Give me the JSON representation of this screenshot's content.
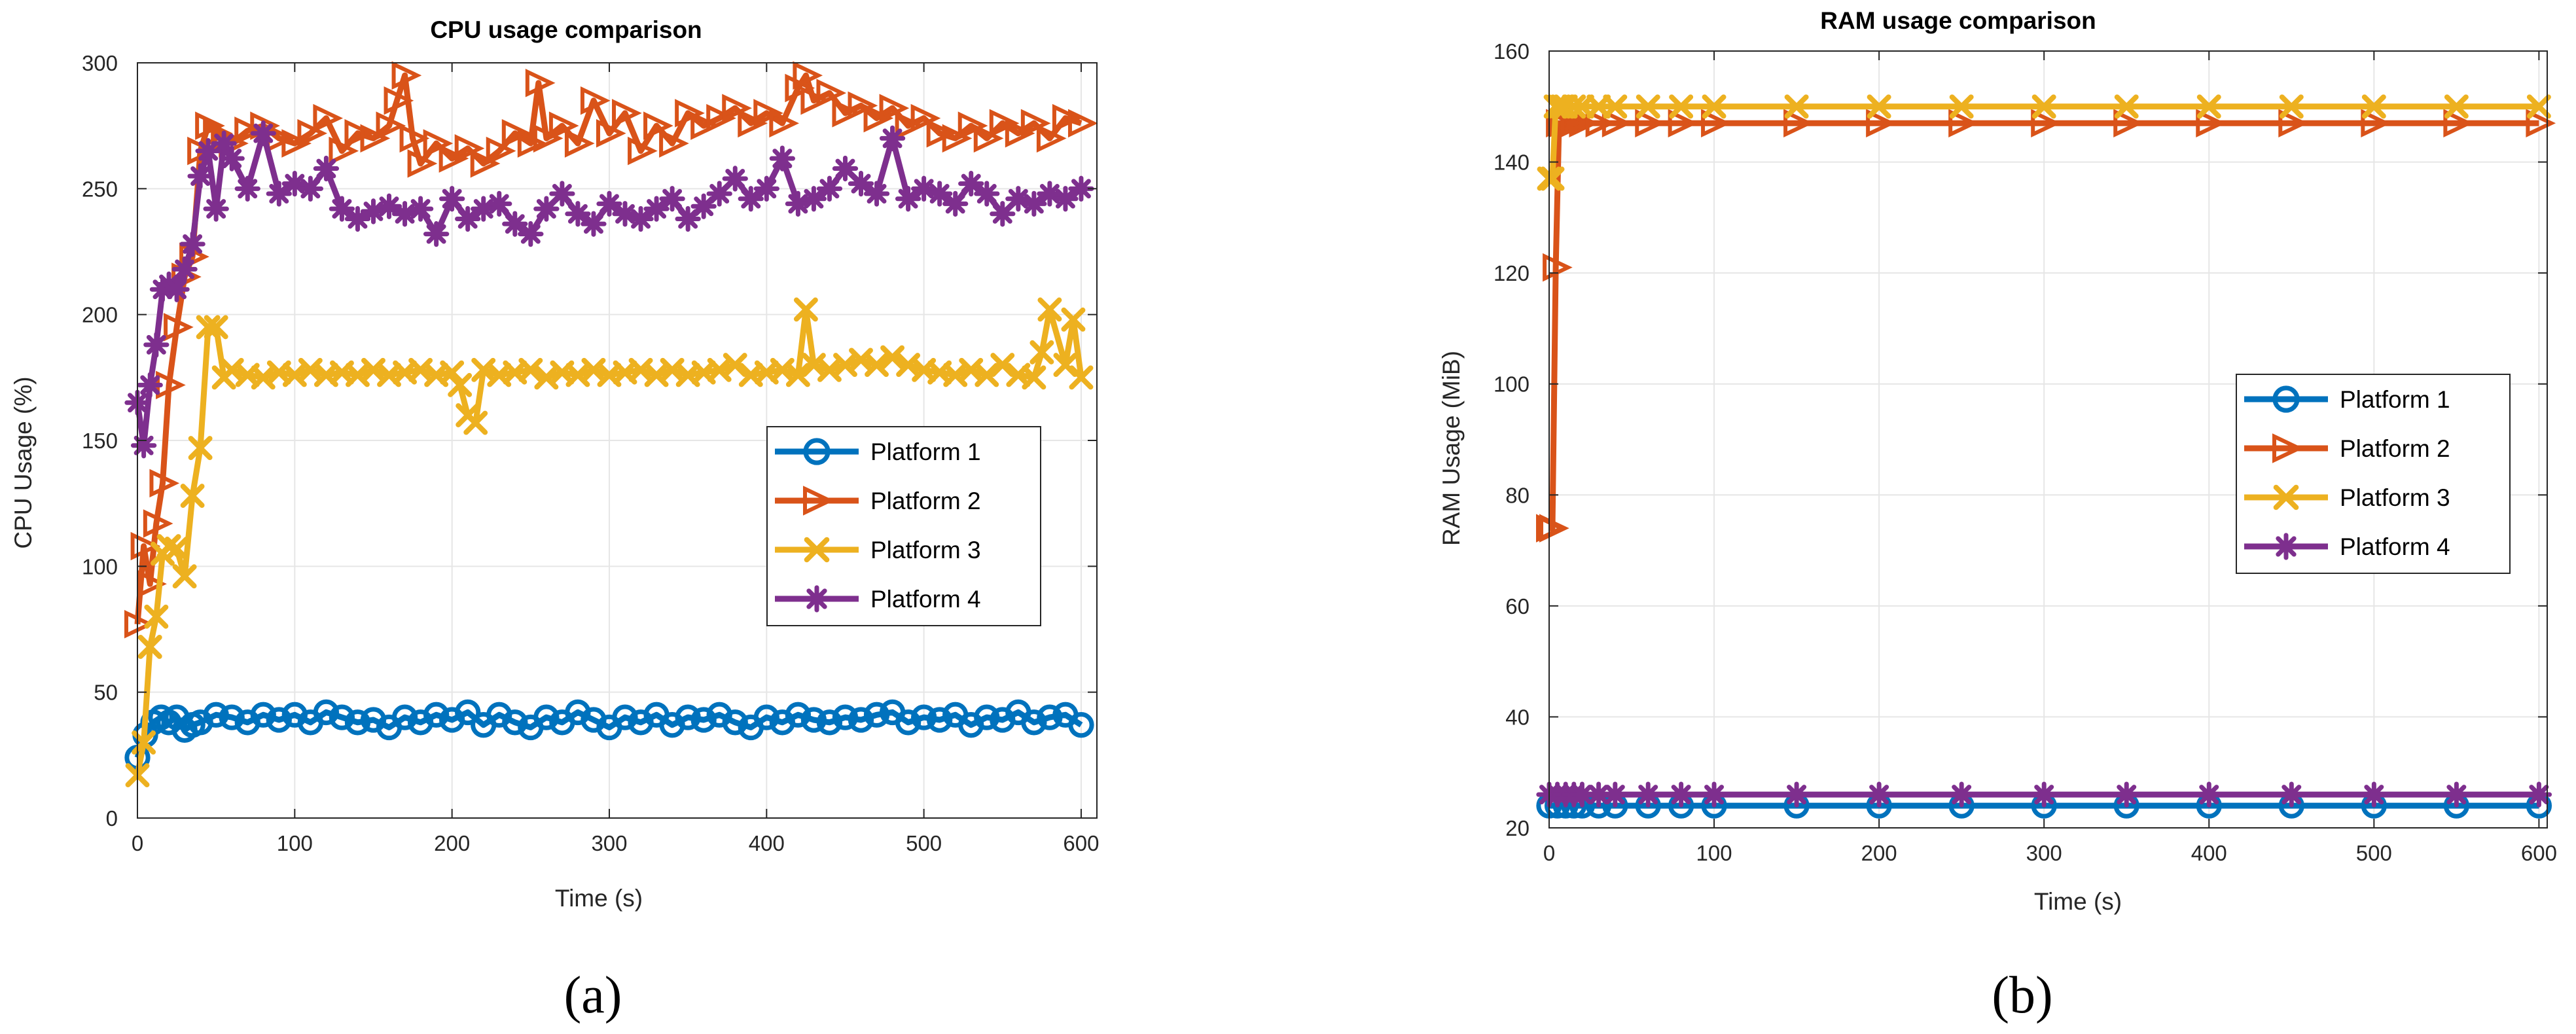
{
  "colors": {
    "platform1": "#0072BD",
    "platform2": "#D95319",
    "platform3": "#EDB120",
    "platform4": "#7E2F8E",
    "grid": "#e6e6e6",
    "axis": "#262626"
  },
  "chart_data": [
    {
      "type": "line",
      "panel": "(a)",
      "title": "CPU usage comparison",
      "xlabel": "Time (s)",
      "ylabel": "CPU Usage (%)",
      "xlim": [
        0,
        610
      ],
      "ylim": [
        0,
        300
      ],
      "xticks": [
        0,
        100,
        200,
        300,
        400,
        500,
        600
      ],
      "yticks": [
        0,
        50,
        100,
        150,
        200,
        250,
        300
      ],
      "grid": true,
      "legend_position": "right-middle",
      "series": [
        {
          "name": "Platform 1",
          "marker": "circle",
          "x": [
            0,
            5,
            10,
            15,
            20,
            25,
            30,
            35,
            40,
            50,
            60,
            70,
            80,
            90,
            100,
            110,
            120,
            130,
            140,
            150,
            160,
            170,
            180,
            190,
            200,
            210,
            220,
            230,
            240,
            250,
            260,
            270,
            280,
            290,
            300,
            310,
            320,
            330,
            340,
            350,
            360,
            370,
            380,
            390,
            400,
            410,
            420,
            430,
            440,
            450,
            460,
            470,
            480,
            490,
            500,
            510,
            520,
            530,
            540,
            550,
            560,
            570,
            580,
            590,
            600
          ],
          "y": [
            24,
            33,
            38,
            40,
            38,
            40,
            35,
            37,
            38,
            41,
            40,
            38,
            41,
            39,
            41,
            38,
            42,
            40,
            38,
            39,
            36,
            40,
            38,
            41,
            39,
            42,
            37,
            41,
            38,
            36,
            40,
            38,
            42,
            39,
            36,
            40,
            38,
            41,
            37,
            40,
            39,
            41,
            38,
            36,
            40,
            38,
            41,
            39,
            38,
            40,
            39,
            41,
            42,
            38,
            40,
            39,
            41,
            37,
            40,
            39,
            42,
            38,
            40,
            41,
            37
          ]
        },
        {
          "name": "Platform 2",
          "marker": "triangle-right",
          "x": [
            0,
            4,
            8,
            12,
            16,
            20,
            25,
            30,
            35,
            40,
            45,
            50,
            55,
            60,
            70,
            80,
            90,
            100,
            110,
            120,
            130,
            140,
            150,
            160,
            165,
            170,
            175,
            180,
            190,
            200,
            210,
            220,
            230,
            240,
            250,
            255,
            260,
            270,
            280,
            290,
            300,
            310,
            320,
            330,
            340,
            350,
            360,
            370,
            380,
            390,
            400,
            410,
            420,
            425,
            430,
            440,
            450,
            460,
            470,
            480,
            490,
            500,
            510,
            520,
            530,
            540,
            550,
            560,
            570,
            580,
            590,
            600
          ],
          "y": [
            77,
            108,
            93,
            117,
            133,
            172,
            195,
            215,
            223,
            265,
            275,
            272,
            270,
            268,
            273,
            275,
            270,
            268,
            272,
            278,
            265,
            272,
            270,
            275,
            285,
            295,
            270,
            260,
            268,
            262,
            266,
            260,
            265,
            272,
            268,
            292,
            270,
            275,
            268,
            285,
            272,
            280,
            265,
            275,
            268,
            280,
            275,
            278,
            282,
            276,
            280,
            276,
            290,
            295,
            285,
            288,
            280,
            283,
            278,
            282,
            275,
            278,
            272,
            270,
            275,
            270,
            276,
            272,
            276,
            270,
            278,
            276
          ]
        },
        {
          "name": "Platform 3",
          "marker": "x",
          "x": [
            0,
            4,
            8,
            12,
            16,
            20,
            25,
            30,
            35,
            40,
            45,
            50,
            55,
            60,
            70,
            80,
            90,
            100,
            110,
            120,
            130,
            140,
            150,
            160,
            170,
            180,
            190,
            200,
            205,
            210,
            215,
            220,
            230,
            240,
            250,
            260,
            270,
            280,
            290,
            300,
            310,
            320,
            330,
            340,
            350,
            360,
            370,
            380,
            390,
            400,
            410,
            420,
            425,
            430,
            440,
            450,
            460,
            470,
            480,
            490,
            500,
            510,
            520,
            530,
            540,
            550,
            560,
            570,
            575,
            580,
            590,
            595,
            600
          ],
          "y": [
            17,
            30,
            68,
            80,
            105,
            108,
            107,
            96,
            128,
            147,
            195,
            195,
            175,
            178,
            176,
            175,
            177,
            176,
            178,
            176,
            177,
            176,
            178,
            176,
            177,
            178,
            176,
            177,
            172,
            160,
            157,
            178,
            176,
            177,
            178,
            175,
            177,
            176,
            178,
            176,
            177,
            178,
            176,
            178,
            176,
            177,
            178,
            180,
            176,
            177,
            178,
            176,
            202,
            180,
            178,
            180,
            182,
            180,
            183,
            180,
            178,
            177,
            176,
            178,
            176,
            180,
            176,
            175,
            185,
            202,
            180,
            198,
            175
          ]
        },
        {
          "name": "Platform 4",
          "marker": "asterisk",
          "x": [
            0,
            4,
            8,
            12,
            16,
            20,
            25,
            30,
            35,
            40,
            45,
            50,
            55,
            60,
            70,
            80,
            90,
            100,
            110,
            120,
            130,
            140,
            150,
            160,
            170,
            180,
            190,
            200,
            210,
            220,
            230,
            240,
            250,
            260,
            270,
            280,
            290,
            300,
            310,
            320,
            330,
            340,
            350,
            360,
            370,
            380,
            390,
            400,
            410,
            420,
            430,
            440,
            450,
            460,
            470,
            480,
            490,
            500,
            510,
            520,
            530,
            540,
            550,
            560,
            570,
            580,
            590,
            600
          ],
          "y": [
            165,
            148,
            172,
            188,
            210,
            212,
            210,
            218,
            228,
            255,
            265,
            242,
            268,
            262,
            250,
            272,
            248,
            252,
            250,
            258,
            242,
            238,
            241,
            243,
            240,
            242,
            232,
            246,
            238,
            242,
            244,
            236,
            232,
            242,
            248,
            240,
            236,
            244,
            240,
            238,
            242,
            246,
            238,
            243,
            248,
            254,
            246,
            250,
            262,
            244,
            246,
            250,
            258,
            252,
            248,
            270,
            246,
            250,
            248,
            244,
            252,
            248,
            240,
            246,
            244,
            248,
            246,
            250
          ]
        }
      ]
    },
    {
      "type": "line",
      "panel": "(b)",
      "title": "RAM usage comparison",
      "xlabel": "Time (s)",
      "ylabel": "RAM Usage (MiB)",
      "xlim": [
        0,
        605
      ],
      "ylim": [
        20,
        160
      ],
      "xticks": [
        0,
        100,
        200,
        300,
        400,
        500,
        600
      ],
      "yticks": [
        20,
        40,
        60,
        80,
        100,
        120,
        140,
        160
      ],
      "grid": true,
      "legend_position": "right-middle",
      "series": [
        {
          "name": "Platform 1",
          "marker": "circle",
          "x": [
            0,
            5,
            10,
            15,
            20,
            30,
            40,
            60,
            80,
            100,
            150,
            200,
            250,
            300,
            350,
            400,
            450,
            500,
            550,
            600
          ],
          "y": [
            24,
            24,
            24,
            24,
            24,
            24,
            24,
            24,
            24,
            24,
            24,
            24,
            24,
            24,
            24,
            24,
            24,
            24,
            24,
            24
          ]
        },
        {
          "name": "Platform 2",
          "marker": "triangle-right",
          "x": [
            0,
            2,
            4,
            6,
            8,
            10,
            15,
            20,
            30,
            40,
            60,
            80,
            100,
            150,
            200,
            250,
            300,
            350,
            400,
            450,
            500,
            550,
            600
          ],
          "y": [
            74,
            74,
            121,
            147,
            147,
            147,
            147,
            147,
            147,
            147,
            147,
            147,
            147,
            147,
            147,
            147,
            147,
            147,
            147,
            147,
            147,
            147,
            147
          ]
        },
        {
          "name": "Platform 3",
          "marker": "x",
          "x": [
            0,
            2,
            4,
            6,
            8,
            10,
            15,
            20,
            30,
            40,
            60,
            80,
            100,
            150,
            200,
            250,
            300,
            350,
            400,
            450,
            500,
            550,
            600
          ],
          "y": [
            137,
            137,
            150,
            150,
            150,
            150,
            150,
            150,
            150,
            150,
            150,
            150,
            150,
            150,
            150,
            150,
            150,
            150,
            150,
            150,
            150,
            150,
            150
          ]
        },
        {
          "name": "Platform 4",
          "marker": "asterisk",
          "x": [
            0,
            5,
            10,
            15,
            20,
            30,
            40,
            60,
            80,
            100,
            150,
            200,
            250,
            300,
            350,
            400,
            450,
            500,
            550,
            600
          ],
          "y": [
            26,
            26,
            26,
            26,
            26,
            26,
            26,
            26,
            26,
            26,
            26,
            26,
            26,
            26,
            26,
            26,
            26,
            26,
            26,
            26
          ]
        }
      ]
    }
  ]
}
